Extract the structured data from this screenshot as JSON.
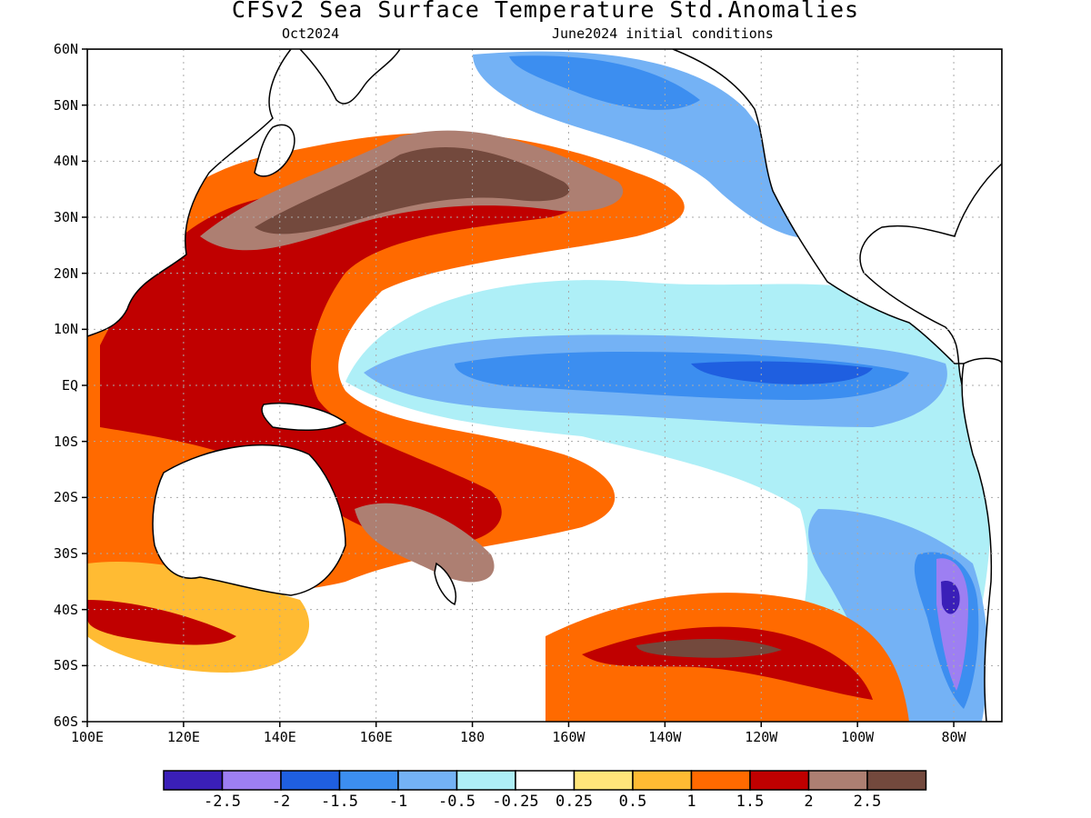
{
  "title": "CFSv2 Sea Surface Temperature Std.Anomalies",
  "subtitle_left": "Oct2024",
  "subtitle_right": "June2024 initial conditions",
  "lat_labels": [
    "60N",
    "50N",
    "40N",
    "30N",
    "20N",
    "10N",
    "EQ",
    "10S",
    "20S",
    "30S",
    "40S",
    "50S",
    "60S"
  ],
  "lon_labels": [
    "100E",
    "120E",
    "140E",
    "160E",
    "180",
    "160W",
    "140W",
    "120W",
    "100W",
    "80W"
  ],
  "colorbar": {
    "labels": [
      "-2.5",
      "-2",
      "-1.5",
      "-1",
      "-0.5",
      "-0.25",
      "0.25",
      "0.5",
      "1",
      "1.5",
      "2",
      "2.5"
    ],
    "colors": [
      "#3a1fb8",
      "#9d7ff2",
      "#1f5fe0",
      "#3c8ef0",
      "#74b2f5",
      "#aeeff7",
      "#ffffff",
      "#ffe57a",
      "#ffbb33",
      "#ff6a00",
      "#c00000",
      "#ad7f72",
      "#73493d"
    ]
  },
  "map_colors": {
    "land": "#ffffff",
    "ocean_neutral": "#ffffff",
    "coast": "#000000",
    "grid": "#aaaaaa"
  }
}
